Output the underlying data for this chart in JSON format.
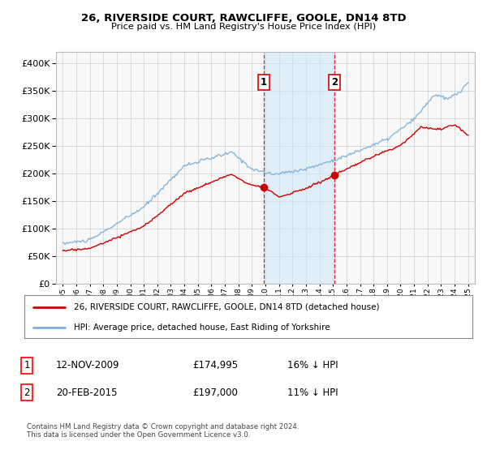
{
  "title": "26, RIVERSIDE COURT, RAWCLIFFE, GOOLE, DN14 8TD",
  "subtitle": "Price paid vs. HM Land Registry's House Price Index (HPI)",
  "legend_line1": "26, RIVERSIDE COURT, RAWCLIFFE, GOOLE, DN14 8TD (detached house)",
  "legend_line2": "HPI: Average price, detached house, East Riding of Yorkshire",
  "footnote": "Contains HM Land Registry data © Crown copyright and database right 2024.\nThis data is licensed under the Open Government Licence v3.0.",
  "transaction1_date": "12-NOV-2009",
  "transaction1_price": "£174,995",
  "transaction1_hpi": "16% ↓ HPI",
  "transaction2_date": "20-FEB-2015",
  "transaction2_price": "£197,000",
  "transaction2_hpi": "11% ↓ HPI",
  "vline1_x": 2009.87,
  "vline2_x": 2015.13,
  "marker1_x": 2009.87,
  "marker1_y": 174995,
  "marker2_x": 2015.13,
  "marker2_y": 197000,
  "ylim": [
    0,
    420000
  ],
  "xlim": [
    1994.5,
    2025.5
  ],
  "hpi_color": "#7ab0d8",
  "price_color": "#cc0000",
  "vline_color": "#dd0000",
  "background_color": "#f8f8f8",
  "grid_color": "#cccccc",
  "span_color": "#d0e8f8"
}
